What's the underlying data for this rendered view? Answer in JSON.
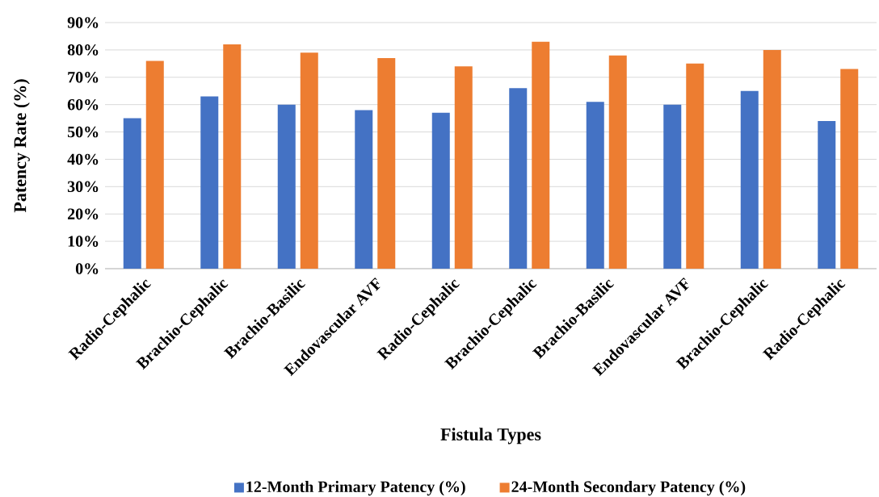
{
  "chart_data": {
    "type": "bar",
    "xlabel": "Fistula Types",
    "ylabel": "Patency Rate (%)",
    "categories": [
      "Radio-Cephalic",
      "Brachio-Cephalic",
      "Brachio-Basilic",
      "Endovascular AVF",
      "Radio-Cephalic",
      "Brachio-Cephalic",
      "Brachio-Basilic",
      "Endovascular AVF",
      "Brachio-Cephalic",
      "Radio-Cephalic"
    ],
    "series": [
      {
        "name": "12-Month Primary Patency (%)",
        "color": "#4472c4",
        "values": [
          55,
          63,
          60,
          58,
          57,
          66,
          61,
          60,
          65,
          54
        ]
      },
      {
        "name": "24-Month Secondary Patency (%)",
        "color": "#ed7d31",
        "values": [
          76,
          82,
          79,
          77,
          74,
          83,
          78,
          75,
          80,
          73
        ]
      }
    ],
    "ylim": [
      0,
      90
    ],
    "yticks": [
      {
        "value": 0,
        "label": "0%"
      },
      {
        "value": 10,
        "label": "10%"
      },
      {
        "value": 20,
        "label": "20%"
      },
      {
        "value": 30,
        "label": "30%"
      },
      {
        "value": 40,
        "label": "40%"
      },
      {
        "value": 50,
        "label": "50%"
      },
      {
        "value": 60,
        "label": "60%"
      },
      {
        "value": 70,
        "label": "70%"
      },
      {
        "value": 80,
        "label": "80%"
      },
      {
        "value": 90,
        "label": "90%"
      }
    ],
    "grid": "y",
    "legend": "bottom"
  }
}
